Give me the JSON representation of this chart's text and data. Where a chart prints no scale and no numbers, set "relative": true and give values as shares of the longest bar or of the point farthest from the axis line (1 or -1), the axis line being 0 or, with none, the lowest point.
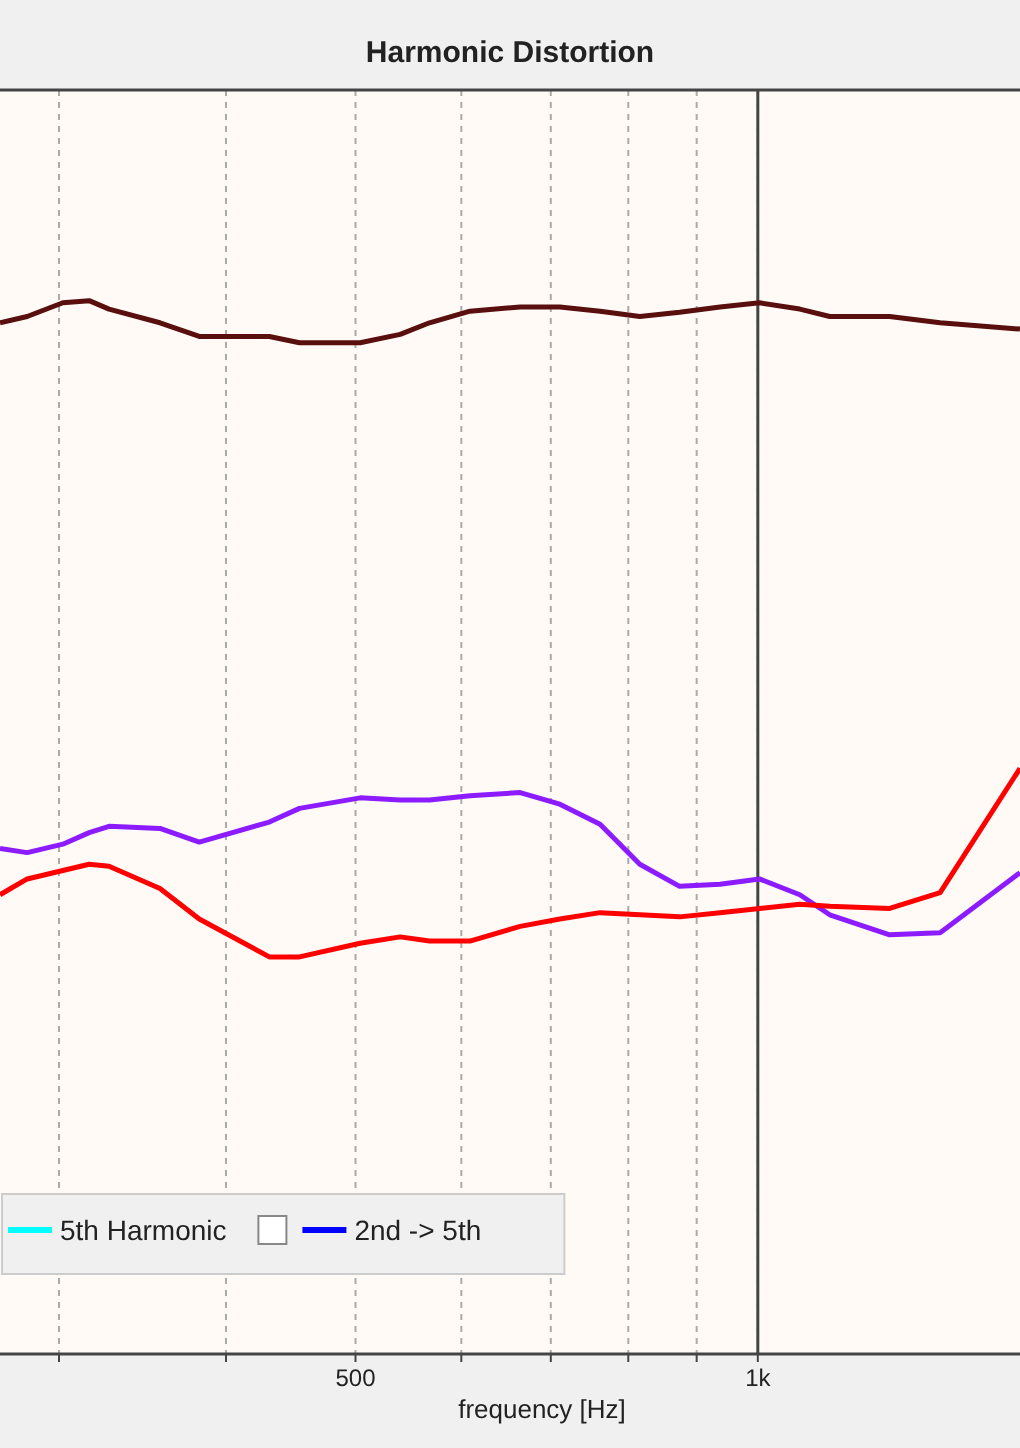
{
  "chart_data": {
    "type": "line",
    "title": "Harmonic Distortion",
    "xlabel": "frequency [Hz]",
    "relative": true,
    "log": "x",
    "grid": "x",
    "legend": "bottom left",
    "x": [
      271,
      284,
      302,
      316,
      327,
      357,
      382,
      431,
      454,
      504,
      540,
      568,
      609,
      664,
      711,
      762,
      816,
      874,
      937,
      1003,
      1075,
      1132,
      1255,
      1369,
      1571
    ],
    "xlim": [
      271,
      1571
    ],
    "ref_lines": [
      {
        "axis": "x",
        "value": 1000,
        "label": null,
        "color": "#444444"
      }
    ],
    "xticks": [
      {
        "value": 300,
        "label": null
      },
      {
        "value": 400,
        "label": null
      },
      500,
      {
        "value": 600,
        "label": null
      },
      {
        "value": 700,
        "label": null
      },
      {
        "value": 800,
        "label": null
      },
      {
        "value": 900,
        "label": null
      },
      {
        "value": 1000,
        "label": "1k"
      }
    ],
    "series": [
      {
        "color": "#5a0f0f",
        "values": [
          0.979,
          0.985,
          0.998,
          1,
          0.992,
          0.979,
          0.966,
          0.966,
          0.96,
          0.96,
          0.968,
          0.979,
          0.99,
          0.994,
          0.994,
          0.99,
          0.985,
          0.989,
          0.994,
          0.998,
          0.992,
          0.985,
          0.985,
          0.979,
          0.973
        ]
      },
      {
        "color": "#8c1cff",
        "values": [
          0.48,
          0.476,
          0.484,
          0.495,
          0.501,
          0.499,
          0.486,
          0.505,
          0.518,
          0.528,
          0.526,
          0.526,
          0.53,
          0.533,
          0.522,
          0.503,
          0.465,
          0.444,
          0.446,
          0.451,
          0.436,
          0.417,
          0.398,
          0.4,
          0.457
        ]
      },
      {
        "color": "#ff0000",
        "values": [
          0.436,
          0.451,
          0.459,
          0.465,
          0.463,
          0.442,
          0.413,
          0.377,
          0.377,
          0.39,
          0.396,
          0.392,
          0.392,
          0.406,
          0.413,
          0.419,
          0.417,
          0.415,
          0.419,
          0.423,
          0.427,
          0.425,
          0.423,
          0.438,
          0.556
        ]
      },
      {
        "name": "5th Harmonic",
        "color": "#00ffff",
        "values": [
          null,
          null,
          null,
          null,
          null,
          null,
          null,
          null,
          null,
          null,
          null,
          null,
          null,
          null,
          null,
          null,
          null,
          null,
          null,
          null,
          null,
          null,
          null,
          null,
          null
        ]
      },
      {
        "name": "2nd -> 5th",
        "color": "#0000ff",
        "values": [
          null,
          null,
          null,
          null,
          null,
          null,
          null,
          null,
          null,
          null,
          null,
          null,
          null,
          null,
          null,
          null,
          null,
          null,
          null,
          null,
          null,
          null,
          null,
          null,
          null
        ]
      }
    ]
  }
}
